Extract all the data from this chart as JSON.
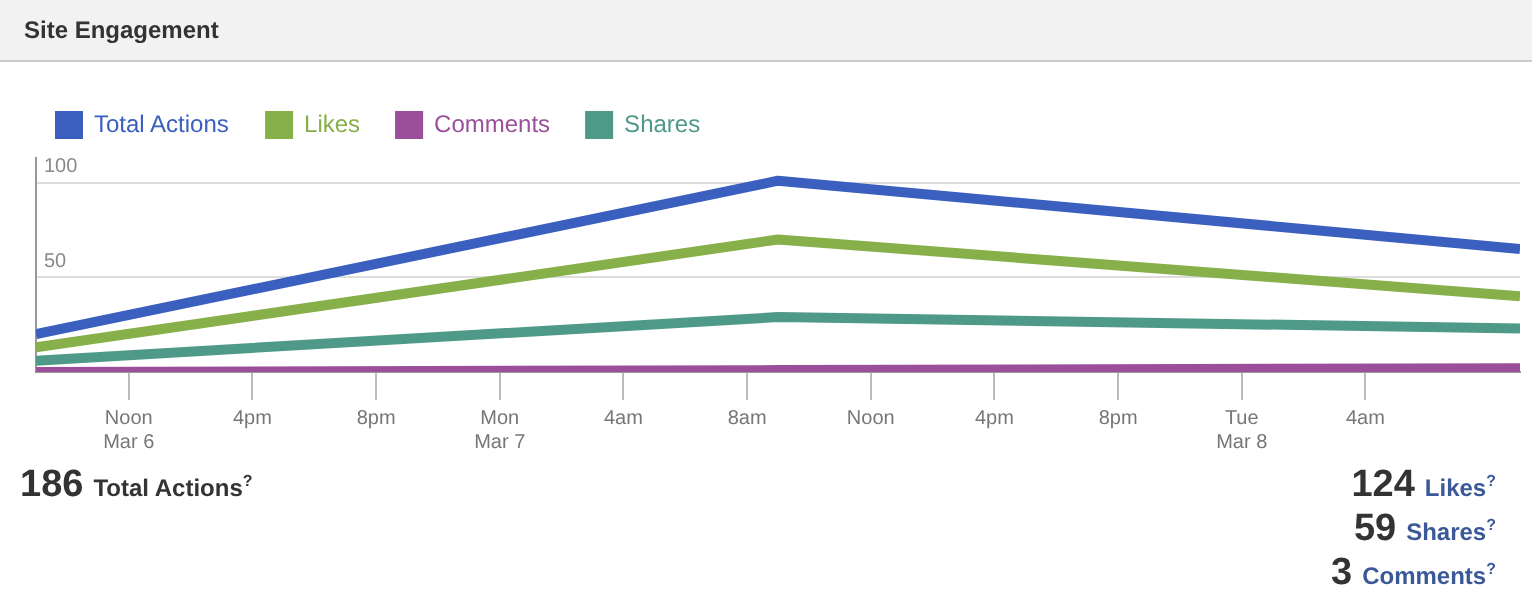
{
  "chart_data": {
    "type": "line",
    "title": "Site Engagement",
    "x": [
      "--03-06T09:00",
      "--03-07T09:00",
      "--03-08T09:00"
    ],
    "series": [
      {
        "name": "Total Actions",
        "color": "#3a5fbf",
        "values": [
          20,
          101,
          65
        ]
      },
      {
        "name": "Likes",
        "color": "#87b04a",
        "values": [
          13,
          70,
          40
        ]
      },
      {
        "name": "Comments",
        "color": "#9b4f9b",
        "values": [
          0,
          1,
          2
        ]
      },
      {
        "name": "Shares",
        "color": "#4f9988",
        "values": [
          6,
          29,
          23
        ]
      }
    ],
    "xlim": [
      "--03-06T09:00",
      "--03-08T09:00"
    ],
    "xticks": [
      {
        "value": "--03-06T12:00",
        "label": "Noon\nMar 6"
      },
      {
        "value": "--03-06T16:00",
        "label": "4pm"
      },
      {
        "value": "--03-06T20:00",
        "label": "8pm"
      },
      {
        "value": "--03-07T00:00",
        "label": "Mon\nMar 7"
      },
      {
        "value": "--03-07T04:00",
        "label": "4am"
      },
      {
        "value": "--03-07T08:00",
        "label": "8am"
      },
      {
        "value": "--03-07T12:00",
        "label": "Noon"
      },
      {
        "value": "--03-07T16:00",
        "label": "4pm"
      },
      {
        "value": "--03-07T20:00",
        "label": "8pm"
      },
      {
        "value": "--03-08T00:00",
        "label": "Tue\nMar 8"
      },
      {
        "value": "--03-08T04:00",
        "label": "4am"
      }
    ],
    "ylim": [
      0,
      113
    ],
    "yticks": [
      50,
      100
    ],
    "grid": "y",
    "legend": "top left",
    "marker": "none",
    "line_style": "solid",
    "annotations": [
      "186 Total Actions$^{?}$",
      "124 Likes$^{?}$",
      "59 Shares$^{?}$",
      "3 Comments$^{?}$"
    ]
  }
}
